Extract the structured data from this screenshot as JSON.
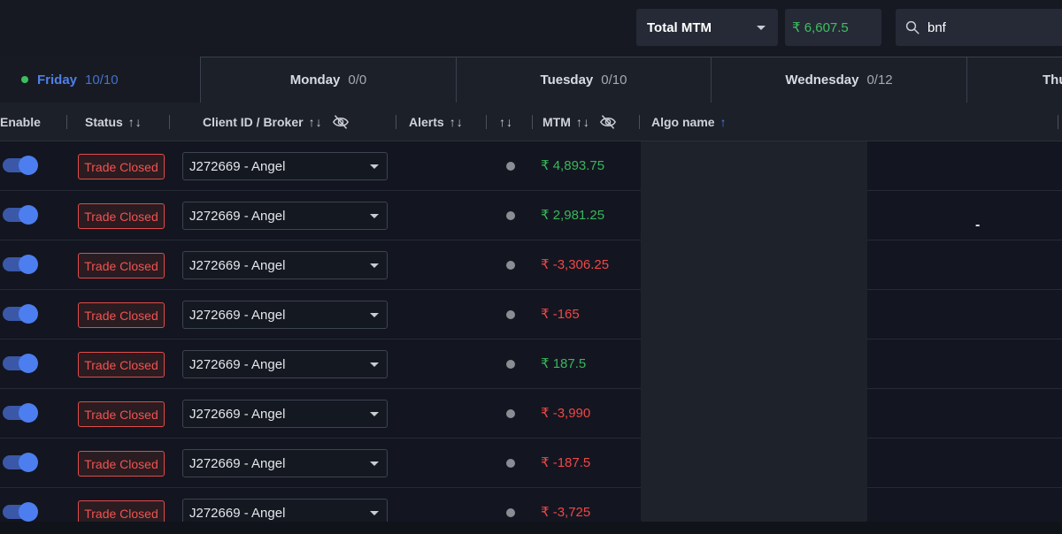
{
  "topbar": {
    "mtm_select_label": "Total MTM",
    "mtm_total": "₹ 6,607.5",
    "search_value": "bnf"
  },
  "tabs": [
    {
      "day": "Friday",
      "count": "10/10",
      "active": true
    },
    {
      "day": "Monday",
      "count": "0/0"
    },
    {
      "day": "Tuesday",
      "count": "0/10"
    },
    {
      "day": "Wednesday",
      "count": "0/12"
    },
    {
      "day": "Thu",
      "count": ""
    }
  ],
  "columns": {
    "enable": "Enable",
    "status": "Status",
    "client_broker": "Client ID / Broker",
    "alerts": "Alerts",
    "mtm": "MTM",
    "algo_name": "Algo name",
    "sort_arrows": "↑↓",
    "sort_up": "↑"
  },
  "rows": [
    {
      "status": "Trade Closed",
      "broker": "J272669 - Angel",
      "mtm": "₹ 4,893.75",
      "sign": "pos"
    },
    {
      "status": "Trade Closed",
      "broker": "J272669 - Angel",
      "mtm": "₹ 2,981.25",
      "sign": "pos"
    },
    {
      "status": "Trade Closed",
      "broker": "J272669 - Angel",
      "mtm": "₹ -3,306.25",
      "sign": "neg"
    },
    {
      "status": "Trade Closed",
      "broker": "J272669 - Angel",
      "mtm": "₹ -165",
      "sign": "neg"
    },
    {
      "status": "Trade Closed",
      "broker": "J272669 - Angel",
      "mtm": "₹ 187.5",
      "sign": "pos"
    },
    {
      "status": "Trade Closed",
      "broker": "J272669 - Angel",
      "mtm": "₹ -3,990",
      "sign": "neg"
    },
    {
      "status": "Trade Closed",
      "broker": "J272669 - Angel",
      "mtm": "₹ -187.5",
      "sign": "neg"
    },
    {
      "status": "Trade Closed",
      "broker": "J272669 - Angel",
      "mtm": "₹ -3,725",
      "sign": "neg"
    }
  ],
  "dash_mark": "-",
  "colors": {
    "accent": "#4f7fe8",
    "positive": "#39b75b",
    "negative": "#ef4747",
    "status_closed": "#e04b4b"
  },
  "icons": [
    "search-icon",
    "eye-off-icon",
    "chevron-down-icon",
    "status-dot-icon"
  ]
}
